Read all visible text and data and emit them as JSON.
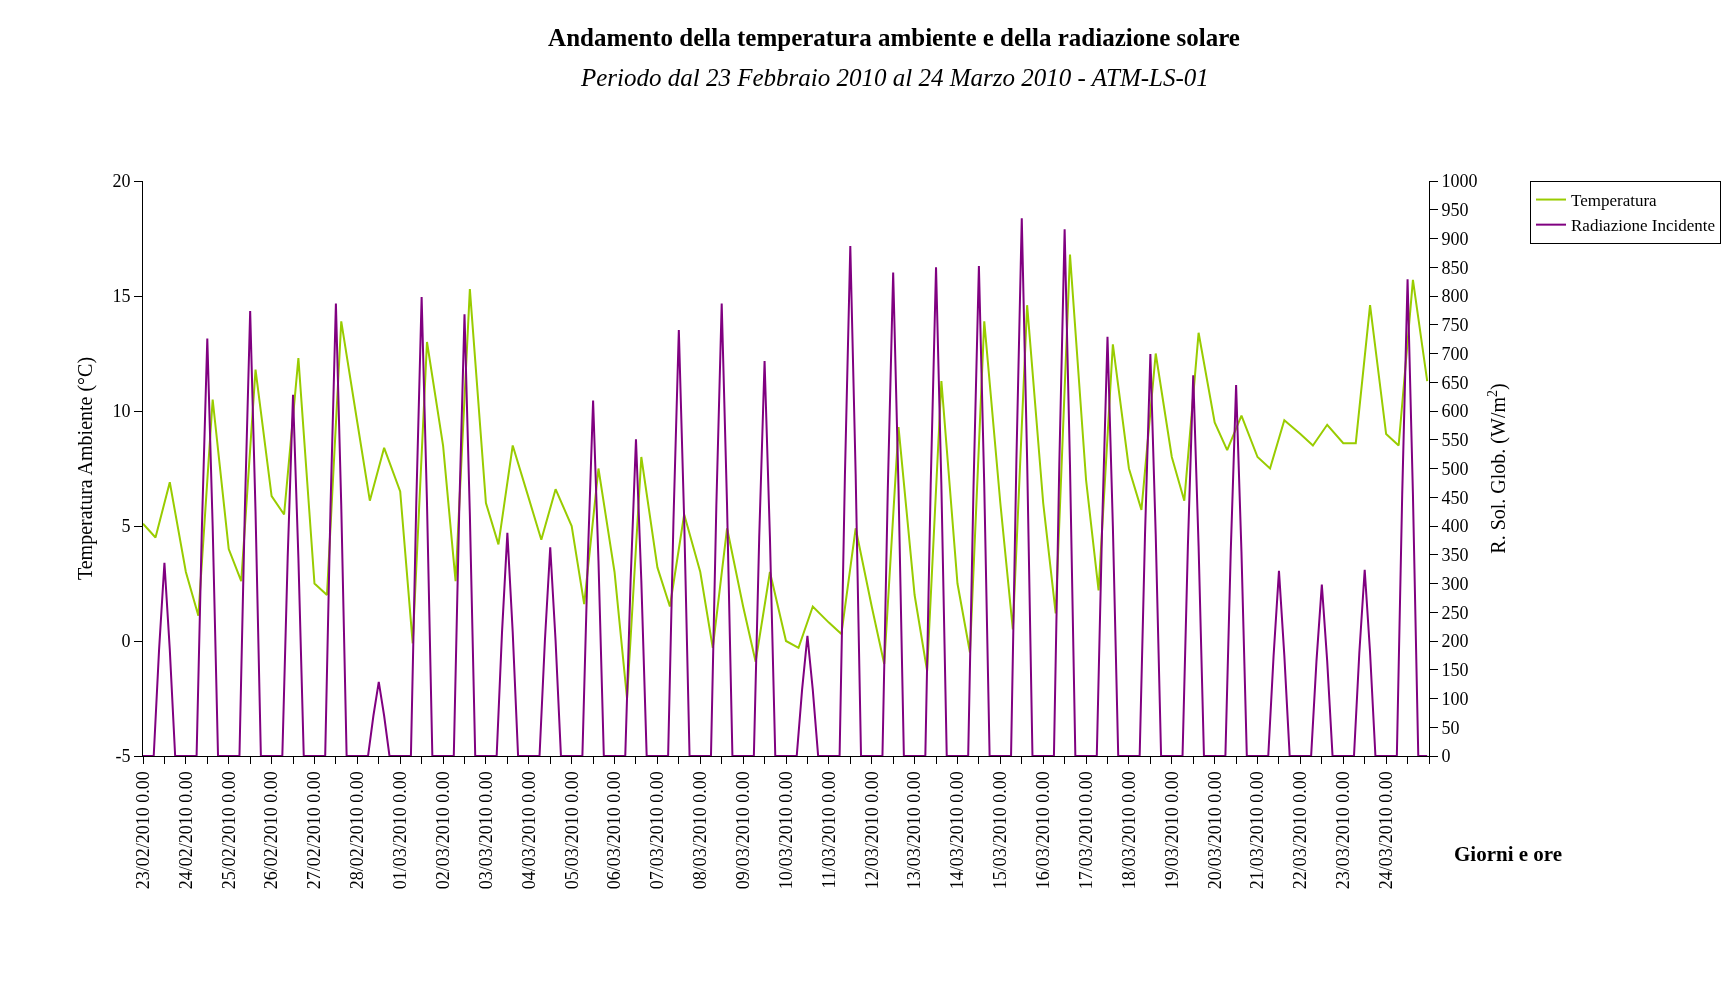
{
  "chart_data": {
    "type": "line",
    "title": "Andamento della temperatura ambiente e della radiazione solare",
    "subtitle": "Periodo dal 23 Febbraio 2010 al 24 Marzo 2010 - ATM-LS-01",
    "xlabel": "Giorni e ore",
    "ylabel": "Temperatura Ambiente (°C)",
    "y2label": "R. Sol. Glob. (W/m$^{2}$)",
    "xlim": [
      "2010-02-23T00:00",
      "2010-03-25T00:00"
    ],
    "xticks": [
      {
        "value": "2010-02-23T00:00",
        "label": "23/02/2010 0.00"
      },
      {
        "value": "2010-02-23T12:00",
        "label": null
      },
      {
        "value": "2010-02-24T00:00",
        "label": "24/02/2010 0.00"
      },
      {
        "value": "2010-02-24T12:00",
        "label": null
      },
      {
        "value": "2010-02-25T00:00",
        "label": "25/02/2010 0.00"
      },
      {
        "value": "2010-02-25T12:00",
        "label": null
      },
      {
        "value": "2010-02-26T00:00",
        "label": "26/02/2010 0.00"
      },
      {
        "value": "2010-02-26T12:00",
        "label": null
      },
      {
        "value": "2010-02-27T00:00",
        "label": "27/02/2010 0.00"
      },
      {
        "value": "2010-02-27T12:00",
        "label": null
      },
      {
        "value": "2010-02-28T00:00",
        "label": "28/02/2010 0.00"
      },
      {
        "value": "2010-02-28T12:00",
        "label": null
      },
      {
        "value": "2010-03-01T00:00",
        "label": "01/03/2010 0.00"
      },
      {
        "value": "2010-03-01T12:00",
        "label": null
      },
      {
        "value": "2010-03-02T00:00",
        "label": "02/03/2010 0.00"
      },
      {
        "value": "2010-03-02T12:00",
        "label": null
      },
      {
        "value": "2010-03-03T00:00",
        "label": "03/03/2010 0.00"
      },
      {
        "value": "2010-03-03T12:00",
        "label": null
      },
      {
        "value": "2010-03-04T00:00",
        "label": "04/03/2010 0.00"
      },
      {
        "value": "2010-03-04T12:00",
        "label": null
      },
      {
        "value": "2010-03-05T00:00",
        "label": "05/03/2010 0.00"
      },
      {
        "value": "2010-03-05T12:00",
        "label": null
      },
      {
        "value": "2010-03-06T00:00",
        "label": "06/03/2010 0.00"
      },
      {
        "value": "2010-03-06T12:00",
        "label": null
      },
      {
        "value": "2010-03-07T00:00",
        "label": "07/03/2010 0.00"
      },
      {
        "value": "2010-03-07T12:00",
        "label": null
      },
      {
        "value": "2010-03-08T00:00",
        "label": "08/03/2010 0.00"
      },
      {
        "value": "2010-03-08T12:00",
        "label": null
      },
      {
        "value": "2010-03-09T00:00",
        "label": "09/03/2010 0.00"
      },
      {
        "value": "2010-03-09T12:00",
        "label": null
      },
      {
        "value": "2010-03-10T00:00",
        "label": "10/03/2010 0.00"
      },
      {
        "value": "2010-03-10T12:00",
        "label": null
      },
      {
        "value": "2010-03-11T00:00",
        "label": "11/03/2010 0.00"
      },
      {
        "value": "2010-03-11T12:00",
        "label": null
      },
      {
        "value": "2010-03-12T00:00",
        "label": "12/03/2010 0.00"
      },
      {
        "value": "2010-03-12T12:00",
        "label": null
      },
      {
        "value": "2010-03-13T00:00",
        "label": "13/03/2010 0.00"
      },
      {
        "value": "2010-03-13T12:00",
        "label": null
      },
      {
        "value": "2010-03-14T00:00",
        "label": "14/03/2010 0.00"
      },
      {
        "value": "2010-03-14T12:00",
        "label": null
      },
      {
        "value": "2010-03-15T00:00",
        "label": "15/03/2010 0.00"
      },
      {
        "value": "2010-03-15T12:00",
        "label": null
      },
      {
        "value": "2010-03-16T00:00",
        "label": "16/03/2010 0.00"
      },
      {
        "value": "2010-03-16T12:00",
        "label": null
      },
      {
        "value": "2010-03-17T00:00",
        "label": "17/03/2010 0.00"
      },
      {
        "value": "2010-03-17T12:00",
        "label": null
      },
      {
        "value": "2010-03-18T00:00",
        "label": "18/03/2010 0.00"
      },
      {
        "value": "2010-03-18T12:00",
        "label": null
      },
      {
        "value": "2010-03-19T00:00",
        "label": "19/03/2010 0.00"
      },
      {
        "value": "2010-03-19T12:00",
        "label": null
      },
      {
        "value": "2010-03-20T00:00",
        "label": "20/03/2010 0.00"
      },
      {
        "value": "2010-03-20T12:00",
        "label": null
      },
      {
        "value": "2010-03-21T00:00",
        "label": "21/03/2010 0.00"
      },
      {
        "value": "2010-03-21T12:00",
        "label": null
      },
      {
        "value": "2010-03-22T00:00",
        "label": "22/03/2010 0.00"
      },
      {
        "value": "2010-03-22T12:00",
        "label": null
      },
      {
        "value": "2010-03-23T00:00",
        "label": "23/03/2010 0.00"
      },
      {
        "value": "2010-03-23T12:00",
        "label": null
      },
      {
        "value": "2010-03-24T00:00",
        "label": "24/03/2010 0.00"
      },
      {
        "value": "2010-03-24T12:00",
        "label": null
      },
      {
        "value": "2010-03-25T00:00",
        "label": null
      }
    ],
    "ylim": [
      -5,
      20
    ],
    "yticks": [
      -5,
      0,
      5,
      10,
      15,
      20
    ],
    "y2lim": [
      0,
      1000
    ],
    "y2ticks": [
      0,
      50,
      100,
      150,
      200,
      250,
      300,
      350,
      400,
      450,
      500,
      550,
      600,
      650,
      700,
      750,
      800,
      850,
      900,
      950,
      1000
    ],
    "grid": false,
    "legend": "top right",
    "marker": "none",
    "line_style": "solid",
    "series": [
      {
        "name": "Temperatura",
        "color": "#99cc00",
        "x": [
          "2010-02-23T00:00",
          "2010-02-23T07:00",
          "2010-02-23T15:00",
          "2010-02-24T00:00",
          "2010-02-24T07:00",
          "2010-02-24T15:00",
          "2010-02-25T00:00",
          "2010-02-25T07:00",
          "2010-02-25T15:00",
          "2010-02-26T00:00",
          "2010-02-26T07:00",
          "2010-02-26T15:00",
          "2010-02-27T00:00",
          "2010-02-27T07:00",
          "2010-02-27T15:00",
          "2010-02-28T00:00",
          "2010-02-28T07:00",
          "2010-02-28T15:00",
          "2010-03-01T00:00",
          "2010-03-01T07:00",
          "2010-03-01T15:00",
          "2010-03-02T00:00",
          "2010-03-02T07:00",
          "2010-03-02T15:00",
          "2010-03-03T00:00",
          "2010-03-03T07:00",
          "2010-03-03T15:00",
          "2010-03-04T00:00",
          "2010-03-04T07:00",
          "2010-03-04T15:00",
          "2010-03-05T00:00",
          "2010-03-05T07:00",
          "2010-03-05T15:00",
          "2010-03-06T00:00",
          "2010-03-06T07:00",
          "2010-03-06T15:00",
          "2010-03-07T00:00",
          "2010-03-07T07:00",
          "2010-03-07T15:00",
          "2010-03-08T00:00",
          "2010-03-08T07:00",
          "2010-03-08T15:00",
          "2010-03-09T00:00",
          "2010-03-09T07:00",
          "2010-03-09T15:00",
          "2010-03-10T00:00",
          "2010-03-10T07:00",
          "2010-03-10T15:00",
          "2010-03-11T00:00",
          "2010-03-11T07:00",
          "2010-03-11T15:00",
          "2010-03-12T00:00",
          "2010-03-12T07:00",
          "2010-03-12T15:00",
          "2010-03-13T00:00",
          "2010-03-13T07:00",
          "2010-03-13T15:00",
          "2010-03-14T00:00",
          "2010-03-14T07:00",
          "2010-03-14T15:00",
          "2010-03-15T00:00",
          "2010-03-15T07:00",
          "2010-03-15T15:00",
          "2010-03-16T00:00",
          "2010-03-16T07:00",
          "2010-03-16T15:00",
          "2010-03-17T00:00",
          "2010-03-17T07:00",
          "2010-03-17T15:00",
          "2010-03-18T00:00",
          "2010-03-18T07:00",
          "2010-03-18T15:00",
          "2010-03-19T00:00",
          "2010-03-19T07:00",
          "2010-03-19T15:00",
          "2010-03-20T00:00",
          "2010-03-20T07:00",
          "2010-03-20T15:00",
          "2010-03-21T00:00",
          "2010-03-21T07:00",
          "2010-03-21T15:00",
          "2010-03-22T00:00",
          "2010-03-22T07:00",
          "2010-03-22T15:00",
          "2010-03-23T00:00",
          "2010-03-23T07:00",
          "2010-03-23T15:00",
          "2010-03-24T00:00",
          "2010-03-24T07:00",
          "2010-03-24T15:00",
          "2010-03-24T23:00"
        ],
        "values": [
          5.1,
          4.5,
          6.9,
          3,
          1.1,
          10.5,
          4,
          2.6,
          11.8,
          6.3,
          5.5,
          12.3,
          2.5,
          2,
          13.9,
          9.5,
          6.1,
          8.4,
          6.5,
          -0.1,
          13,
          8.5,
          2.6,
          15.3,
          6,
          4.2,
          8.5,
          6.2,
          4.4,
          6.6,
          5,
          1.6,
          7.5,
          3,
          -2.5,
          8,
          3.2,
          1.5,
          5.5,
          3,
          -0.3,
          4.9,
          1.5,
          -0.9,
          3,
          0,
          -0.3,
          1.5,
          0.8,
          0.3,
          4.9,
          1.5,
          -1,
          9.3,
          2,
          -1.3,
          11.3,
          2.5,
          -0.5,
          13.9,
          6,
          0.5,
          14.6,
          6,
          1.2,
          16.8,
          7,
          2.2,
          12.9,
          7.5,
          5.7,
          12.5,
          8,
          6.1,
          13.4,
          9.5,
          8.3,
          9.8,
          8,
          7.5,
          9.6,
          9,
          8.5,
          9.4,
          8.6,
          8.6,
          14.6,
          9,
          8.5,
          15.7,
          11.3
        ]
      },
      {
        "name": "Radiazione Incidente",
        "color": "#800080",
        "axis": "y2",
        "x": [
          "2010-02-23T00:00",
          "2010-02-23T06:00",
          "2010-02-23T09:00",
          "2010-02-23T12:00",
          "2010-02-23T15:00",
          "2010-02-23T18:00",
          "2010-02-24T06:00",
          "2010-02-24T09:00",
          "2010-02-24T12:00",
          "2010-02-24T15:00",
          "2010-02-24T18:00",
          "2010-02-25T06:00",
          "2010-02-25T09:00",
          "2010-02-25T12:00",
          "2010-02-25T15:00",
          "2010-02-25T18:00",
          "2010-02-26T06:00",
          "2010-02-26T09:00",
          "2010-02-26T12:00",
          "2010-02-26T15:00",
          "2010-02-26T18:00",
          "2010-02-27T06:00",
          "2010-02-27T09:00",
          "2010-02-27T12:00",
          "2010-02-27T15:00",
          "2010-02-27T18:00",
          "2010-02-28T06:00",
          "2010-02-28T09:00",
          "2010-02-28T12:00",
          "2010-02-28T15:00",
          "2010-02-28T18:00",
          "2010-03-01T06:00",
          "2010-03-01T09:00",
          "2010-03-01T12:00",
          "2010-03-01T15:00",
          "2010-03-01T18:00",
          "2010-03-02T06:00",
          "2010-03-02T09:00",
          "2010-03-02T12:00",
          "2010-03-02T15:00",
          "2010-03-02T18:00",
          "2010-03-03T06:00",
          "2010-03-03T09:00",
          "2010-03-03T12:00",
          "2010-03-03T15:00",
          "2010-03-03T18:00",
          "2010-03-04T06:00",
          "2010-03-04T09:00",
          "2010-03-04T12:00",
          "2010-03-04T15:00",
          "2010-03-04T18:00",
          "2010-03-05T06:00",
          "2010-03-05T09:00",
          "2010-03-05T12:00",
          "2010-03-05T15:00",
          "2010-03-05T18:00",
          "2010-03-06T06:00",
          "2010-03-06T09:00",
          "2010-03-06T12:00",
          "2010-03-06T15:00",
          "2010-03-06T18:00",
          "2010-03-07T06:00",
          "2010-03-07T09:00",
          "2010-03-07T12:00",
          "2010-03-07T15:00",
          "2010-03-07T18:00",
          "2010-03-08T06:00",
          "2010-03-08T09:00",
          "2010-03-08T12:00",
          "2010-03-08T15:00",
          "2010-03-08T18:00",
          "2010-03-09T06:00",
          "2010-03-09T09:00",
          "2010-03-09T12:00",
          "2010-03-09T15:00",
          "2010-03-09T18:00",
          "2010-03-10T06:00",
          "2010-03-10T09:00",
          "2010-03-10T12:00",
          "2010-03-10T15:00",
          "2010-03-10T18:00",
          "2010-03-11T06:00",
          "2010-03-11T09:00",
          "2010-03-11T12:00",
          "2010-03-11T15:00",
          "2010-03-11T18:00",
          "2010-03-12T06:00",
          "2010-03-12T09:00",
          "2010-03-12T12:00",
          "2010-03-12T15:00",
          "2010-03-12T18:00",
          "2010-03-13T06:00",
          "2010-03-13T09:00",
          "2010-03-13T12:00",
          "2010-03-13T15:00",
          "2010-03-13T18:00",
          "2010-03-14T06:00",
          "2010-03-14T09:00",
          "2010-03-14T12:00",
          "2010-03-14T15:00",
          "2010-03-14T18:00",
          "2010-03-15T06:00",
          "2010-03-15T09:00",
          "2010-03-15T12:00",
          "2010-03-15T15:00",
          "2010-03-15T18:00",
          "2010-03-16T06:00",
          "2010-03-16T09:00",
          "2010-03-16T12:00",
          "2010-03-16T15:00",
          "2010-03-16T18:00",
          "2010-03-17T06:00",
          "2010-03-17T09:00",
          "2010-03-17T12:00",
          "2010-03-17T15:00",
          "2010-03-17T18:00",
          "2010-03-18T06:00",
          "2010-03-18T09:00",
          "2010-03-18T12:00",
          "2010-03-18T15:00",
          "2010-03-18T18:00",
          "2010-03-19T06:00",
          "2010-03-19T09:00",
          "2010-03-19T12:00",
          "2010-03-19T15:00",
          "2010-03-19T18:00",
          "2010-03-20T06:00",
          "2010-03-20T09:00",
          "2010-03-20T12:00",
          "2010-03-20T15:00",
          "2010-03-20T18:00",
          "2010-03-21T06:00",
          "2010-03-21T09:00",
          "2010-03-21T12:00",
          "2010-03-21T15:00",
          "2010-03-21T18:00",
          "2010-03-22T06:00",
          "2010-03-22T09:00",
          "2010-03-22T12:00",
          "2010-03-22T15:00",
          "2010-03-22T18:00",
          "2010-03-23T06:00",
          "2010-03-23T09:00",
          "2010-03-23T12:00",
          "2010-03-23T15:00",
          "2010-03-23T18:00",
          "2010-03-24T06:00",
          "2010-03-24T09:00",
          "2010-03-24T12:00",
          "2010-03-24T15:00",
          "2010-03-24T18:00",
          "2010-03-24T23:00"
        ],
        "values": [
          0,
          0,
          185,
          336,
          185,
          0,
          0,
          400,
          726,
          400,
          0,
          0,
          425,
          774,
          425,
          0,
          0,
          345,
          628,
          345,
          0,
          0,
          435,
          787,
          435,
          0,
          0,
          70,
          129,
          70,
          0,
          0,
          440,
          798,
          440,
          0,
          0,
          420,
          768,
          420,
          0,
          0,
          215,
          388,
          215,
          0,
          0,
          200,
          363,
          200,
          0,
          0,
          340,
          618,
          340,
          0,
          0,
          305,
          551,
          305,
          0,
          0,
          410,
          741,
          410,
          0,
          0,
          435,
          787,
          435,
          0,
          0,
          380,
          687,
          380,
          0,
          0,
          115,
          209,
          115,
          0,
          0,
          490,
          887,
          490,
          0,
          0,
          465,
          841,
          465,
          0,
          0,
          470,
          850,
          470,
          0,
          0,
          470,
          852,
          470,
          0,
          0,
          515,
          935,
          515,
          0,
          0,
          505,
          916,
          505,
          0,
          0,
          400,
          729,
          400,
          0,
          0,
          385,
          699,
          385,
          0,
          0,
          365,
          662,
          365,
          0,
          0,
          355,
          645,
          355,
          0,
          0,
          175,
          322,
          175,
          0,
          0,
          165,
          298,
          165,
          0,
          0,
          180,
          324,
          180,
          0,
          0,
          455,
          829,
          455,
          0,
          0
        ]
      }
    ]
  }
}
